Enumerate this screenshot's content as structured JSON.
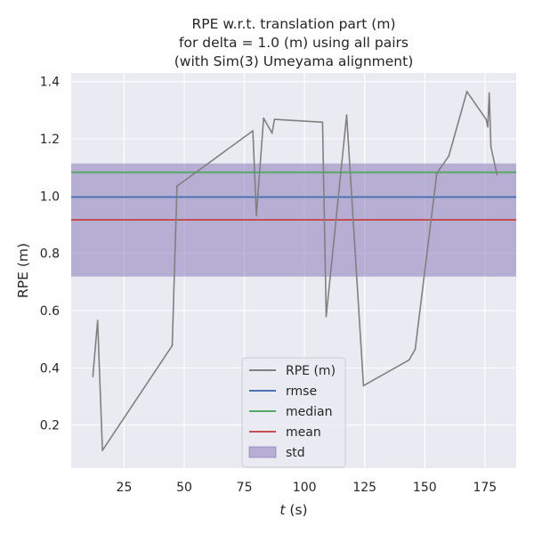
{
  "chart_data": {
    "type": "line",
    "title_lines": [
      "RPE w.r.t. translation part (m)",
      "for delta = 1.0 (m) using all pairs",
      "(with Sim(3) Umeyama alignment)"
    ],
    "xlabel_italic": "t",
    "xlabel_rest": " (s)",
    "ylabel": "RPE (m)",
    "xlim": [
      3,
      188
    ],
    "ylim": [
      0.05,
      1.43
    ],
    "xticks": [
      25,
      50,
      75,
      100,
      125,
      150,
      175
    ],
    "yticks": [
      0.2,
      0.4,
      0.6,
      0.8,
      1.0,
      1.2,
      1.4
    ],
    "grid": true,
    "legend_position": "lower-center",
    "stats": {
      "rmse": 0.997,
      "median": 1.083,
      "mean": 0.917,
      "std_band": [
        0.719,
        1.114
      ]
    },
    "series": [
      {
        "name": "RPE (m)",
        "color": "#808080",
        "x": [
          12,
          14,
          16,
          45,
          47,
          78.5,
          80,
          83,
          86.5,
          87.5,
          107.5,
          109,
          117.5,
          124.5,
          143.5,
          146,
          155,
          160,
          167.5,
          175.5,
          176.2,
          176.8,
          177.5,
          180
        ],
        "y": [
          0.37,
          0.565,
          0.112,
          0.478,
          1.035,
          1.228,
          0.932,
          1.272,
          1.22,
          1.268,
          1.258,
          0.58,
          1.283,
          0.338,
          0.428,
          0.465,
          1.08,
          1.14,
          1.365,
          1.268,
          1.242,
          1.36,
          1.172,
          1.075
        ]
      }
    ],
    "legend": [
      {
        "label": "RPE (m)",
        "kind": "line",
        "color": "#808080"
      },
      {
        "label": "rmse",
        "kind": "line",
        "color": "#4c72b0"
      },
      {
        "label": "median",
        "kind": "line",
        "color": "#55a868"
      },
      {
        "label": "mean",
        "kind": "line",
        "color": "#c44e52"
      },
      {
        "label": "std",
        "kind": "patch",
        "color": "#8172b3"
      }
    ]
  }
}
